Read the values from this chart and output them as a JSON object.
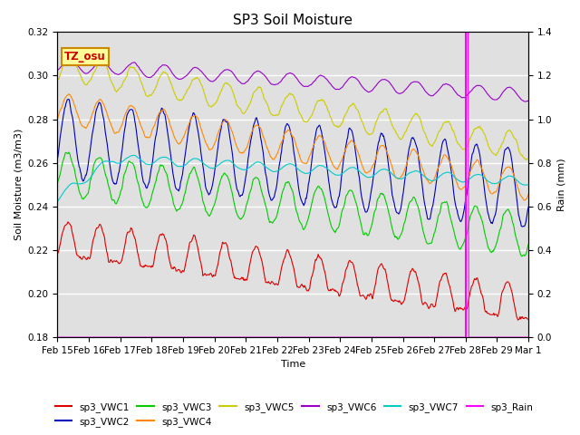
{
  "title": "SP3 Soil Moisture",
  "xlabel": "Time",
  "ylabel_left": "Soil Moisture (m3/m3)",
  "ylabel_right": "Rain (mm)",
  "ylim_left": [
    0.18,
    0.32
  ],
  "ylim_right": [
    0.0,
    1.4
  ],
  "plot_bg_color": "#e0e0e0",
  "annotation_label": "TZ_osu",
  "annotation_color": "#cc0000",
  "annotation_bg": "#ffff99",
  "annotation_border": "#cc8800",
  "vline_color": "magenta",
  "vline_day": 13,
  "series": {
    "VWC1": {
      "color": "#dd0000",
      "label": "sp3_VWC1"
    },
    "VWC2": {
      "color": "#0000bb",
      "label": "sp3_VWC2"
    },
    "VWC3": {
      "color": "#00cc00",
      "label": "sp3_VWC3"
    },
    "VWC4": {
      "color": "#ff8800",
      "label": "sp3_VWC4"
    },
    "VWC5": {
      "color": "#cccc00",
      "label": "sp3_VWC5"
    },
    "VWC6": {
      "color": "#9900cc",
      "label": "sp3_VWC6"
    },
    "VWC7": {
      "color": "#00cccc",
      "label": "sp3_VWC7"
    },
    "Rain": {
      "color": "magenta",
      "label": "sp3_Rain"
    }
  },
  "x_tick_labels": [
    "Feb 15",
    "Feb 16",
    "Feb 17",
    "Feb 18",
    "Feb 19",
    "Feb 20",
    "Feb 21",
    "Feb 22",
    "Feb 23",
    "Feb 24",
    "Feb 25",
    "Feb 26",
    "Feb 27",
    "Feb 28",
    "Feb 29",
    "Mar 1"
  ],
  "title_fontsize": 11,
  "axis_fontsize": 8,
  "tick_fontsize": 7.5
}
